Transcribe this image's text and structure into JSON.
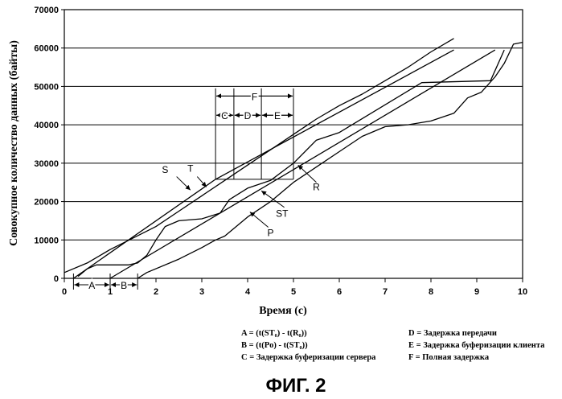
{
  "chart_data": {
    "type": "line",
    "xlabel": "Время (с)",
    "ylabel": "Совокупное количество данных (байты)",
    "xlim": [
      0,
      10
    ],
    "ylim": [
      0,
      70000
    ],
    "xticks": [
      "0",
      "1",
      "2",
      "3",
      "4",
      "5",
      "6",
      "7",
      "8",
      "9",
      "10"
    ],
    "yticks": [
      "0",
      "10000",
      "20000",
      "30000",
      "40000",
      "50000",
      "60000",
      "70000"
    ],
    "grid": "horizontal",
    "series": [
      {
        "name": "S",
        "points": [
          [
            0,
            1500
          ],
          [
            0.5,
            4000
          ],
          [
            1,
            7500
          ],
          [
            1.5,
            10500
          ],
          [
            2,
            13500
          ],
          [
            2.5,
            17500
          ],
          [
            3,
            21500
          ],
          [
            3.5,
            25500
          ],
          [
            4,
            29500
          ],
          [
            4.5,
            33500
          ],
          [
            5,
            37500
          ],
          [
            5.5,
            41500
          ],
          [
            6,
            45000
          ],
          [
            6.5,
            48000
          ],
          [
            7,
            51500
          ],
          [
            7.5,
            55000
          ],
          [
            8,
            59000
          ],
          [
            8.5,
            62500
          ]
        ]
      },
      {
        "name": "T",
        "points": [
          [
            0.2,
            0
          ],
          [
            3.3,
            25800
          ],
          [
            8.5,
            59500
          ]
        ]
      },
      {
        "name": "ST",
        "points": [
          [
            0.3,
            500
          ],
          [
            0.5,
            2500
          ],
          [
            0.7,
            3500
          ],
          [
            1.4,
            3500
          ],
          [
            1.6,
            4000
          ],
          [
            1.8,
            6000
          ],
          [
            2,
            10000
          ],
          [
            2.2,
            13500
          ],
          [
            2.5,
            15000
          ],
          [
            3,
            15500
          ],
          [
            3.4,
            17000
          ],
          [
            3.6,
            20500
          ],
          [
            4,
            23500
          ],
          [
            4.5,
            25500
          ],
          [
            5,
            30000
          ],
          [
            5.5,
            36000
          ],
          [
            6,
            38000
          ],
          [
            7.8,
            51000
          ],
          [
            9.3,
            51500
          ],
          [
            9.6,
            59500
          ]
        ]
      },
      {
        "name": "P",
        "points": [
          [
            1,
            0
          ],
          [
            9.4,
            59500
          ]
        ]
      },
      {
        "name": "R",
        "points": [
          [
            1.6,
            0
          ],
          [
            1.8,
            1500
          ],
          [
            2.5,
            5000
          ],
          [
            3,
            8000
          ],
          [
            3.3,
            10000
          ],
          [
            3.5,
            11000
          ],
          [
            4,
            16000
          ],
          [
            4.5,
            20000
          ],
          [
            5,
            25000
          ],
          [
            5.5,
            29000
          ],
          [
            6,
            33000
          ],
          [
            6.5,
            37000
          ],
          [
            7,
            39500
          ],
          [
            7.5,
            40000
          ],
          [
            8,
            41000
          ],
          [
            8.5,
            43000
          ],
          [
            8.8,
            47000
          ],
          [
            9.1,
            48500
          ],
          [
            9.4,
            52500
          ],
          [
            9.6,
            56000
          ],
          [
            9.8,
            61000
          ],
          [
            10,
            61500
          ]
        ]
      }
    ],
    "annotations": {
      "A": {
        "label": "A",
        "from": 0.2,
        "to": 1
      },
      "B": {
        "label": "B",
        "from": 1,
        "to": 1.6
      },
      "C": {
        "label": "C",
        "from": 3.3,
        "to": 3.7
      },
      "D": {
        "label": "D",
        "from": 3.7,
        "to": 4.3
      },
      "E": {
        "label": "E",
        "from": 4.3,
        "to": 5
      },
      "F": {
        "label": "F",
        "from": 3.3,
        "to": 5
      }
    }
  },
  "legend": {
    "left": [
      "A = (t(ST₀) - t(R₀))",
      "B = (t(Po) - t(ST₀))",
      "C = Задержка буферизации сервера"
    ],
    "right": [
      "D = Задержка передачи",
      "E =  Задержка буферизации клиента",
      "F =   Полная задержка"
    ]
  },
  "caption": "ФИГ. 2"
}
